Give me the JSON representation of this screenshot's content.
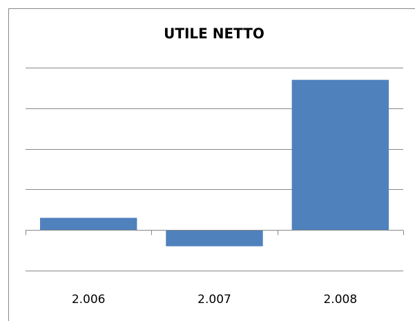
{
  "chart_data": {
    "type": "bar",
    "title": "UTILE NETTO",
    "categories": [
      "2.006",
      "2.007",
      "2.008"
    ],
    "values": [
      0.3,
      -0.4,
      3.7
    ],
    "color": "#4f81bd",
    "ylim": [
      -1,
      4
    ],
    "yticks": [
      -1,
      0,
      1,
      2,
      3,
      4
    ],
    "grid": true
  }
}
